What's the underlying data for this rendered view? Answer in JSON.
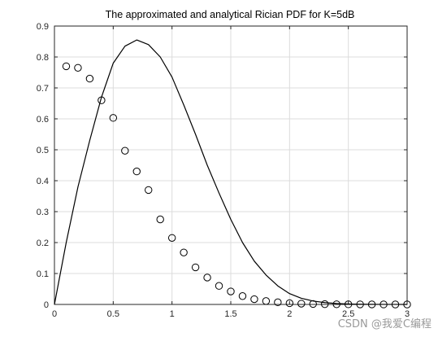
{
  "chart_data": {
    "type": "line",
    "title": "The approximated and analytical Rician PDF for K=5dB",
    "xlabel": "",
    "ylabel": "",
    "xlim": [
      0,
      3
    ],
    "ylim": [
      0,
      0.9
    ],
    "x_ticks": [
      "0",
      "0.5",
      "1",
      "1.5",
      "2",
      "2.5",
      "3"
    ],
    "y_ticks": [
      "0",
      "0.1",
      "0.2",
      "0.3",
      "0.4",
      "0.5",
      "0.6",
      "0.7",
      "0.8",
      "0.9"
    ],
    "grid": true,
    "legend": "none",
    "series": [
      {
        "style": "line",
        "color": "#000000",
        "x": [
          0,
          0.1,
          0.2,
          0.3,
          0.4,
          0.5,
          0.6,
          0.7,
          0.8,
          0.9,
          1.0,
          1.1,
          1.2,
          1.3,
          1.4,
          1.5,
          1.6,
          1.7,
          1.8,
          1.9,
          2.0,
          2.1,
          2.2,
          2.3,
          2.4,
          2.5,
          2.6,
          2.7,
          2.8,
          2.9,
          3.0
        ],
        "y": [
          0,
          0.2,
          0.38,
          0.53,
          0.67,
          0.78,
          0.835,
          0.855,
          0.84,
          0.8,
          0.735,
          0.645,
          0.55,
          0.45,
          0.36,
          0.275,
          0.2,
          0.14,
          0.095,
          0.06,
          0.035,
          0.02,
          0.011,
          0.006,
          0.003,
          0.0015,
          0.0008,
          0.0004,
          0.0002,
          0.0001,
          5e-05
        ]
      },
      {
        "style": "markers",
        "marker": "circle",
        "color": "#000000",
        "x": [
          0.1,
          0.2,
          0.3,
          0.4,
          0.5,
          0.6,
          0.7,
          0.8,
          0.9,
          1.0,
          1.1,
          1.2,
          1.3,
          1.4,
          1.5,
          1.6,
          1.7,
          1.8,
          1.9,
          2.0,
          2.1,
          2.2,
          2.3,
          2.4,
          2.5,
          2.6,
          2.7,
          2.8,
          2.9,
          3.0
        ],
        "y": [
          0.77,
          0.765,
          0.73,
          0.66,
          0.603,
          0.497,
          0.43,
          0.37,
          0.275,
          0.215,
          0.168,
          0.12,
          0.087,
          0.06,
          0.042,
          0.027,
          0.017,
          0.011,
          0.007,
          0.004,
          0.0025,
          0.0015,
          0.001,
          0.0006,
          0.0004,
          0.0002,
          0.0001,
          5e-05,
          3e-05,
          2e-05
        ]
      }
    ]
  },
  "watermark": "CSDN @我爱C编程"
}
